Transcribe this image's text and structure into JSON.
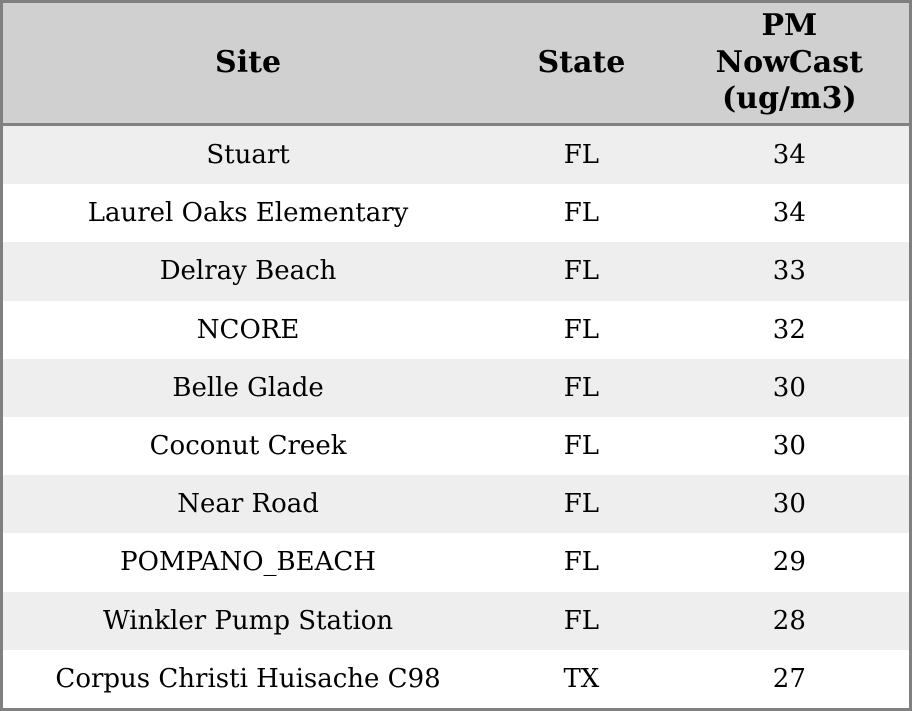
{
  "colors": {
    "outer_border": "#808080",
    "header_bg": "#d0d0d0",
    "row_stripe": "#eeeeee",
    "row_plain": "#ffffff",
    "text": "#000000"
  },
  "table": {
    "header": {
      "site": "Site",
      "state": "State",
      "pm": "PM NowCast (ug/m3)"
    },
    "rows": [
      {
        "site": "Stuart",
        "state": "FL",
        "pm": "34"
      },
      {
        "site": "Laurel Oaks Elementary",
        "state": "FL",
        "pm": "34"
      },
      {
        "site": "Delray Beach",
        "state": "FL",
        "pm": "33"
      },
      {
        "site": "NCORE",
        "state": "FL",
        "pm": "32"
      },
      {
        "site": "Belle Glade",
        "state": "FL",
        "pm": "30"
      },
      {
        "site": "Coconut Creek",
        "state": "FL",
        "pm": "30"
      },
      {
        "site": "Near Road",
        "state": "FL",
        "pm": "30"
      },
      {
        "site": "POMPANO_BEACH",
        "state": "FL",
        "pm": "29"
      },
      {
        "site": "Winkler Pump Station",
        "state": "FL",
        "pm": "28"
      },
      {
        "site": "Corpus Christi Huisache C98",
        "state": "TX",
        "pm": "27"
      }
    ]
  },
  "chart_data": {
    "type": "table",
    "columns": [
      "Site",
      "State",
      "PM NowCast (ug/m3)"
    ],
    "rows": [
      [
        "Stuart",
        "FL",
        34
      ],
      [
        "Laurel Oaks Elementary",
        "FL",
        34
      ],
      [
        "Delray Beach",
        "FL",
        33
      ],
      [
        "NCORE",
        "FL",
        32
      ],
      [
        "Belle Glade",
        "FL",
        30
      ],
      [
        "Coconut Creek",
        "FL",
        30
      ],
      [
        "Near Road",
        "FL",
        30
      ],
      [
        "POMPANO_BEACH",
        "FL",
        29
      ],
      [
        "Winkler Pump Station",
        "FL",
        28
      ],
      [
        "Corpus Christi Huisache C98",
        "TX",
        27
      ]
    ],
    "title": "",
    "notes": "striped rows, header shaded gray, all cells center-aligned"
  }
}
